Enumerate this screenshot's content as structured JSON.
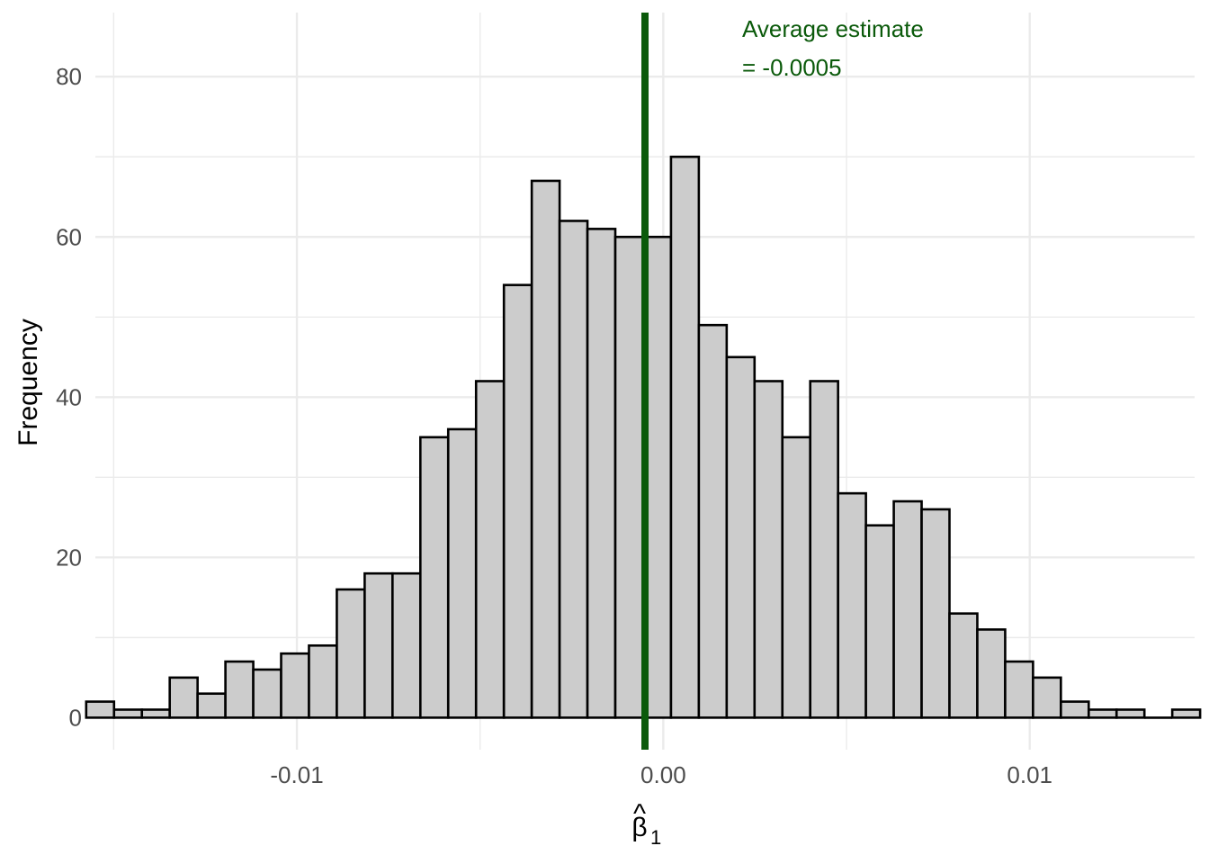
{
  "chart_data": {
    "type": "bar",
    "subtype": "histogram",
    "title": "",
    "xlabel_symbol": "β",
    "xlabel_hat": "^",
    "xlabel_subscript": "1",
    "ylabel": "Frequency",
    "xlim": [
      -0.0155,
      0.0145
    ],
    "ylim": [
      -4,
      88
    ],
    "x_ticks": [
      -0.01,
      0.0,
      0.01
    ],
    "x_tick_labels": [
      "-0.01",
      "0.00",
      "0.01"
    ],
    "y_ticks": [
      0,
      20,
      40,
      60,
      80
    ],
    "y_tick_labels": [
      "0",
      "20",
      "40",
      "60",
      "80"
    ],
    "grid": true,
    "bin_start": -0.01575,
    "bin_width": 0.00076,
    "values": [
      2,
      1,
      1,
      5,
      3,
      7,
      6,
      8,
      9,
      16,
      18,
      18,
      35,
      36,
      42,
      54,
      67,
      62,
      61,
      60,
      60,
      70,
      49,
      45,
      42,
      35,
      42,
      28,
      24,
      27,
      26,
      13,
      11,
      7,
      5,
      2,
      1,
      1,
      0,
      1
    ],
    "bar_fill": "#cccccc",
    "bar_stroke": "#000000",
    "mean_line": {
      "value": -0.0005,
      "color": "#0b5a0b"
    },
    "annotation": {
      "line1": "Average estimate",
      "line2": "= -0.0005",
      "color": "#0b5a0b"
    }
  }
}
